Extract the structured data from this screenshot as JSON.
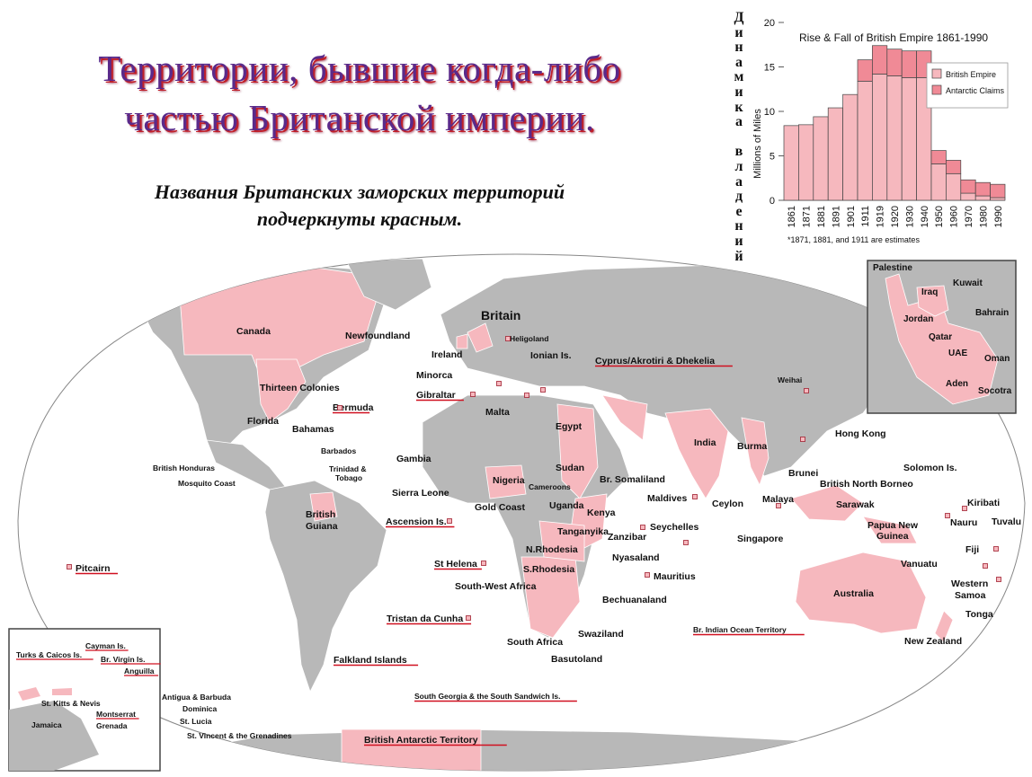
{
  "title": {
    "line1": "Территории, бывшие когда-либо",
    "line2": "частью Британской империи."
  },
  "subtitle": {
    "line1": "Названия Британских заморских территорий",
    "line2": "подчеркнуты красным."
  },
  "vertical_label": "Динамика владений",
  "colors": {
    "empire": "#f6b8be",
    "claims": "#f08a96",
    "land": "#b8b8b8",
    "ocean": "#ffffff",
    "underline": "#d01020"
  },
  "chart_data": {
    "type": "bar",
    "title": "Rise & Fall of British Empire 1861-1990",
    "ylabel": "Millions of Miles",
    "footnote": "*1871, 1881, and 1911 are estimates",
    "ylim": [
      0,
      20
    ],
    "yticks": [
      "0",
      "5",
      "10",
      "15",
      "20"
    ],
    "categories": [
      "1861",
      "1871",
      "1881",
      "1891",
      "1901",
      "1911",
      "1919",
      "1920",
      "1930",
      "1940",
      "1950",
      "1960",
      "1970",
      "1980",
      "1990"
    ],
    "series": [
      {
        "name": "British Empire",
        "values": [
          8.4,
          8.5,
          9.4,
          10.4,
          11.9,
          13.4,
          14.2,
          14.0,
          13.8,
          13.8,
          4.1,
          3.0,
          0.8,
          0.5,
          0.3
        ]
      },
      {
        "name": "Antarctic Claims",
        "values": [
          0,
          0,
          0,
          0,
          0,
          2.4,
          3.2,
          3.0,
          3.0,
          3.0,
          1.5,
          1.5,
          1.5,
          1.5,
          1.5
        ]
      }
    ]
  },
  "map": {
    "labels": [
      {
        "text": "Britain",
        "big": true
      },
      {
        "text": "Ireland"
      },
      {
        "text": "Heligoland",
        "small": true
      },
      {
        "text": "Canada"
      },
      {
        "text": "Newfoundland"
      },
      {
        "text": "Thirteen Colonies"
      },
      {
        "text": "Bermuda",
        "ot": true
      },
      {
        "text": "Florida"
      },
      {
        "text": "Bahamas"
      },
      {
        "text": "Barbados",
        "small": true
      },
      {
        "text": "Trinidad &",
        "small": true
      },
      {
        "text": "Tobago",
        "small": true
      },
      {
        "text": "British Honduras",
        "small": true
      },
      {
        "text": "Mosquito Coast",
        "small": true
      },
      {
        "text": "British"
      },
      {
        "text": "Guiana"
      },
      {
        "text": "Minorca"
      },
      {
        "text": "Gibraltar",
        "ot": true
      },
      {
        "text": "Malta"
      },
      {
        "text": "Ionian Is."
      },
      {
        "text": "Cyprus/Akrotiri & Dhekelia",
        "ot": true
      },
      {
        "text": "Egypt"
      },
      {
        "text": "Weihai",
        "small": true
      },
      {
        "text": "Hong Kong"
      },
      {
        "text": "India"
      },
      {
        "text": "Burma"
      },
      {
        "text": "Gambia"
      },
      {
        "text": "Sierra Leone"
      },
      {
        "text": "Nigeria"
      },
      {
        "text": "Cameroons",
        "small": true
      },
      {
        "text": "Gold Coast"
      },
      {
        "text": "Sudan"
      },
      {
        "text": "Br. Somaliland"
      },
      {
        "text": "Maldives"
      },
      {
        "text": "Ceylon"
      },
      {
        "text": "Brunei"
      },
      {
        "text": "British North Borneo"
      },
      {
        "text": "Sarawak"
      },
      {
        "text": "Malaya"
      },
      {
        "text": "Singapore"
      },
      {
        "text": "Solomon Is."
      },
      {
        "text": "Kiribati"
      },
      {
        "text": "Nauru"
      },
      {
        "text": "Tuvalu"
      },
      {
        "text": "Papua New"
      },
      {
        "text": "Guinea"
      },
      {
        "text": "Fiji"
      },
      {
        "text": "Vanuatu"
      },
      {
        "text": "Western"
      },
      {
        "text": "Samoa"
      },
      {
        "text": "Tonga"
      },
      {
        "text": "Uganda"
      },
      {
        "text": "Kenya"
      },
      {
        "text": "Tanganyika"
      },
      {
        "text": "Zanzibar"
      },
      {
        "text": "Seychelles"
      },
      {
        "text": "Ascension Is.",
        "ot": true
      },
      {
        "text": "N.Rhodesia"
      },
      {
        "text": "Nyasaland"
      },
      {
        "text": "S.Rhodesia"
      },
      {
        "text": "Mauritius"
      },
      {
        "text": "St Helena",
        "ot": true
      },
      {
        "text": "South-West Africa"
      },
      {
        "text": "Bechuanaland"
      },
      {
        "text": "Pitcairn",
        "ot": true
      },
      {
        "text": "Tristan da Cunha",
        "ot": true
      },
      {
        "text": "Swaziland"
      },
      {
        "text": "South Africa"
      },
      {
        "text": "Basutoland"
      },
      {
        "text": "Br. Indian Ocean Territory",
        "ot": true,
        "small": true
      },
      {
        "text": "Australia"
      },
      {
        "text": "New Zealand"
      },
      {
        "text": "Falkland Islands",
        "ot": true
      },
      {
        "text": "South Georgia & the South Sandwich Is.",
        "ot": true,
        "small": true
      },
      {
        "text": "British Antarctic Territory",
        "ot": true
      }
    ],
    "mideast": [
      {
        "text": "Palestine"
      },
      {
        "text": "Iraq"
      },
      {
        "text": "Kuwait"
      },
      {
        "text": "Bahrain"
      },
      {
        "text": "Jordan"
      },
      {
        "text": "Qatar"
      },
      {
        "text": "UAE"
      },
      {
        "text": "Oman"
      },
      {
        "text": "Aden"
      },
      {
        "text": "Socotra"
      }
    ],
    "caribbean": [
      {
        "text": "Turks & Caicos Is.",
        "ot": true
      },
      {
        "text": "Cayman Is.",
        "ot": true
      },
      {
        "text": "Br. Virgin Is.",
        "ot": true
      },
      {
        "text": "Anguilla",
        "ot": true
      },
      {
        "text": "Antigua & Barbuda"
      },
      {
        "text": "St. Kitts & Nevis"
      },
      {
        "text": "Montserrat",
        "ot": true
      },
      {
        "text": "Dominica"
      },
      {
        "text": "St. Lucia"
      },
      {
        "text": "Grenada"
      },
      {
        "text": "St. Vincent & the Grenadines"
      },
      {
        "text": "Jamaica"
      }
    ]
  }
}
